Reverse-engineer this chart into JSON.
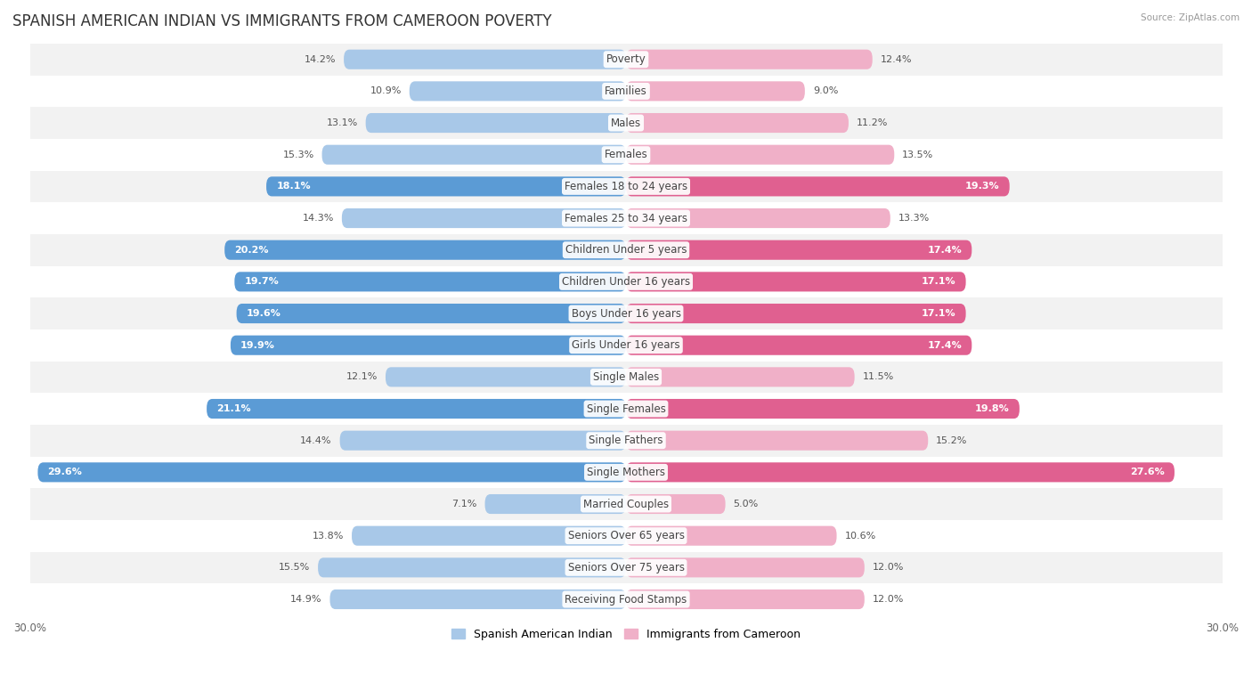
{
  "title": "SPANISH AMERICAN INDIAN VS IMMIGRANTS FROM CAMEROON POVERTY",
  "source": "Source: ZipAtlas.com",
  "categories": [
    "Poverty",
    "Families",
    "Males",
    "Females",
    "Females 18 to 24 years",
    "Females 25 to 34 years",
    "Children Under 5 years",
    "Children Under 16 years",
    "Boys Under 16 years",
    "Girls Under 16 years",
    "Single Males",
    "Single Females",
    "Single Fathers",
    "Single Mothers",
    "Married Couples",
    "Seniors Over 65 years",
    "Seniors Over 75 years",
    "Receiving Food Stamps"
  ],
  "left_values": [
    14.2,
    10.9,
    13.1,
    15.3,
    18.1,
    14.3,
    20.2,
    19.7,
    19.6,
    19.9,
    12.1,
    21.1,
    14.4,
    29.6,
    7.1,
    13.8,
    15.5,
    14.9
  ],
  "right_values": [
    12.4,
    9.0,
    11.2,
    13.5,
    19.3,
    13.3,
    17.4,
    17.1,
    17.1,
    17.4,
    11.5,
    19.8,
    15.2,
    27.6,
    5.0,
    10.6,
    12.0,
    12.0
  ],
  "left_color_normal": "#a8c8e8",
  "right_color_normal": "#f0b0c8",
  "left_color_highlight": "#5b9bd5",
  "right_color_highlight": "#e06090",
  "highlight_rows": [
    4,
    6,
    7,
    8,
    9,
    11,
    13
  ],
  "left_label": "Spanish American Indian",
  "right_label": "Immigrants from Cameroon",
  "xlim": 30.0,
  "row_bg_even": "#f2f2f2",
  "row_bg_odd": "#ffffff",
  "title_fontsize": 12,
  "label_fontsize": 8.5,
  "value_fontsize": 8,
  "axis_tick_fontsize": 8.5,
  "background_color": "#ffffff"
}
